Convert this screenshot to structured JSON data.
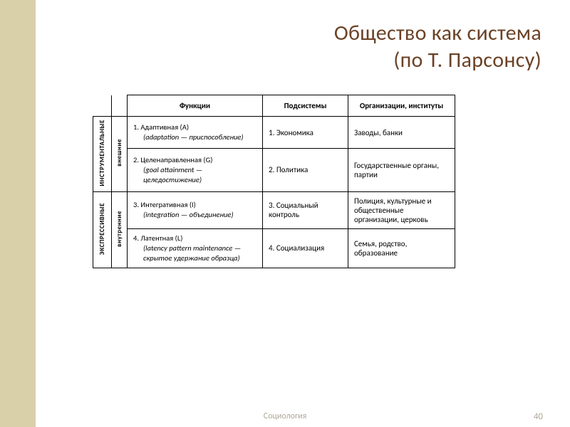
{
  "title_line1": "Общество как система",
  "title_line2": "(по Т. Парсонсу)",
  "headers": {
    "functions": "Функции",
    "subsystems": "Подсистемы",
    "orgs": "Организации, институты"
  },
  "vlabels": {
    "instrumental": "ИНСТРУМЕНТАЛЬНЫЕ",
    "expressive": "ЭКСПРЕССИВНЫЕ",
    "external": "внешние",
    "internal": "внутренние"
  },
  "rows": [
    {
      "func_num": "1.",
      "func_name": "Адаптивная (A)",
      "func_sub": "(adaptation — приспособление)",
      "subsystem": "1. Экономика",
      "org": "Заводы, банки"
    },
    {
      "func_num": "2.",
      "func_name": "Целенаправленная (G)",
      "func_sub": "(goal attainment — целедостижение)",
      "subsystem": "2. Политика",
      "org": "Государственные органы, партии"
    },
    {
      "func_num": "3.",
      "func_name": "Интегративная (I)",
      "func_sub": "(integration — объединение)",
      "subsystem": "3. Социальный контроль",
      "org": "Полиция, культурные и общественные организации, церковь"
    },
    {
      "func_num": "4.",
      "func_name": "Латентная (L)",
      "func_sub": "(latency pattern maintenance — скрытое удержание образца)",
      "subsystem": "4. Социализация",
      "org": "Семья, родство, образование"
    }
  ],
  "footer": {
    "center": "Социология",
    "page": "40"
  },
  "colors": {
    "stripe": "#d9cfa9",
    "title": "#6b4226",
    "footer": "#b0a99a",
    "border": "#000000"
  }
}
